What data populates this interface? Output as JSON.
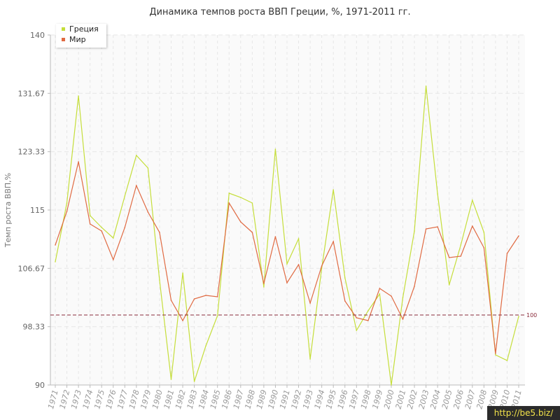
{
  "title": "Динамика темпов роста ВВП Греции, %, 1971-2011 гг.",
  "watermark": "http://be5.biz/",
  "colors": {
    "greece": "#c5de3a",
    "world": "#e06a42",
    "reference": "#8a2a3a"
  },
  "chart_data": {
    "type": "line",
    "title": "Динамика темпов роста ВВП Греции, %, 1971-2011 гг.",
    "xlabel": "",
    "ylabel": "Темп роста ВВП,%",
    "ylim": [
      90,
      140
    ],
    "yticks": [
      "140",
      "131.67",
      "123.33",
      "115",
      "106.67",
      "98.33",
      "90"
    ],
    "grid": true,
    "legend_position": "top-left",
    "categories": [
      "1971",
      "1972",
      "1973",
      "1974",
      "1975",
      "1976",
      "1977",
      "1978",
      "1979",
      "1980",
      "1981",
      "1982",
      "1983",
      "1984",
      "1985",
      "1986",
      "1987",
      "1988",
      "1989",
      "1990",
      "1991",
      "1992",
      "1993",
      "1994",
      "1995",
      "1996",
      "1997",
      "1998",
      "1999",
      "2000",
      "2001",
      "2002",
      "2003",
      "2004",
      "2005",
      "2006",
      "2007",
      "2008",
      "2009",
      "2010",
      "2011"
    ],
    "series": [
      {
        "name": "Греция",
        "values": [
          107.6,
          116.0,
          131.3,
          114.2,
          112.5,
          111.0,
          117.0,
          122.8,
          121.0,
          105.0,
          90.8,
          106.0,
          90.5,
          95.6,
          99.9,
          117.4,
          116.8,
          116.0,
          104.0,
          123.7,
          107.3,
          110.9,
          93.7,
          106.7,
          117.9,
          105.3,
          97.8,
          100.6,
          103.0,
          90.0,
          102.5,
          112.0,
          132.7,
          117.3,
          104.3,
          110.0,
          116.4,
          111.8,
          94.3,
          93.5,
          99.8
        ]
      },
      {
        "name": "Мир",
        "values": [
          110.0,
          114.8,
          121.9,
          113.0,
          112.0,
          107.9,
          112.5,
          118.5,
          114.7,
          111.8,
          102.1,
          99.2,
          102.3,
          102.8,
          102.6,
          116.0,
          113.3,
          111.8,
          104.5,
          111.2,
          104.6,
          107.2,
          101.7,
          107.0,
          110.5,
          102.0,
          99.6,
          99.2,
          103.8,
          102.7,
          99.4,
          104.1,
          112.3,
          112.6,
          108.2,
          108.4,
          112.7,
          109.6,
          94.5,
          108.8,
          111.3
        ]
      }
    ],
    "reference_line": {
      "y": 100,
      "label": "100"
    }
  }
}
